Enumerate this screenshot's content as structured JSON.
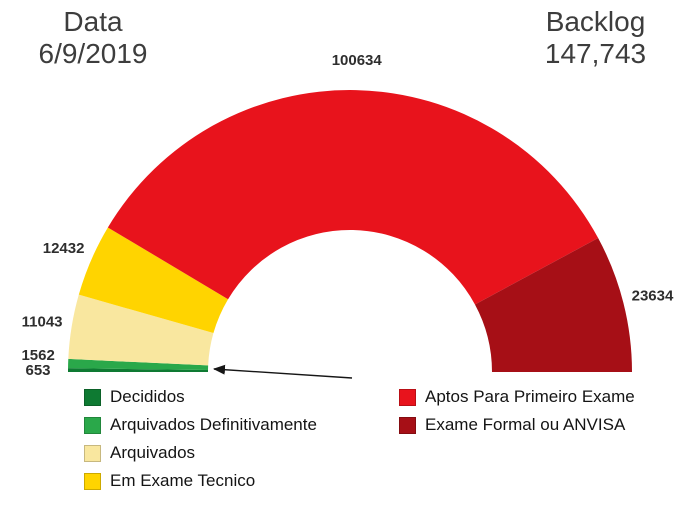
{
  "header": {
    "date_label": "Data",
    "date_value": "6/9/2019",
    "backlog_label": "Backlog",
    "backlog_value": "147,743"
  },
  "chart_data": {
    "type": "pie",
    "variant": "half-donut-gauge",
    "title": "Backlog 147,743 - Data 6/9/2019",
    "legend_position": "bottom-two-columns",
    "segments": [
      {
        "label": "Decididos",
        "value": 653,
        "color": "#0e7a32"
      },
      {
        "label": "Arquivados Definitivamente",
        "value": 1562,
        "color": "#2aa84a"
      },
      {
        "label": "Arquivados",
        "value": 11043,
        "color": "#f9e79f"
      },
      {
        "label": "Em Exame Tecnico",
        "value": 12432,
        "color": "#ffd400"
      },
      {
        "label": "Aptos Para Primeiro Exame",
        "value": 100634,
        "color": "#e8131c"
      },
      {
        "label": "Exame Formal ou ANVISA",
        "value": 23634,
        "color": "#a60f16"
      }
    ],
    "legend_columns": {
      "left": [
        0,
        1,
        2,
        3
      ],
      "right": [
        4,
        5
      ]
    },
    "annotation": {
      "type": "arrow",
      "points_to": "small-segments-decididos-arquivados"
    }
  }
}
